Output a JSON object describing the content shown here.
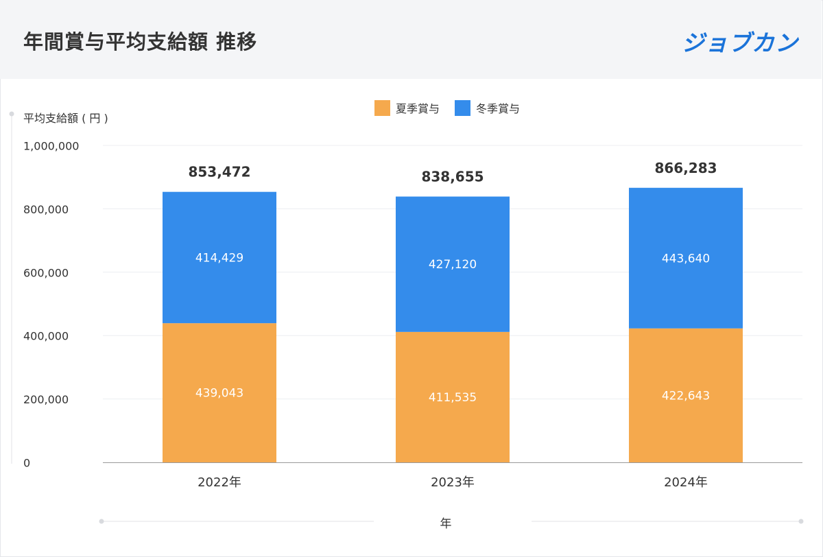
{
  "header": {
    "title": "年間賞与平均支給額 推移",
    "logo": "ジョブカン"
  },
  "colors": {
    "summer": "#f5a94d",
    "winter": "#348ceb",
    "grid": "#eceef1",
    "axis": "#999999"
  },
  "chart_data": {
    "type": "bar",
    "stacked": true,
    "title": "年間賞与平均支給額 推移",
    "xlabel": "年",
    "ylabel": "平均支給額 ( 円 )",
    "categories": [
      "2022年",
      "2023年",
      "2024年"
    ],
    "series": [
      {
        "name": "夏季賞与",
        "values": [
          439043,
          411535,
          422643
        ]
      },
      {
        "name": "冬季賞与",
        "values": [
          414429,
          427120,
          443640
        ]
      }
    ],
    "totals": [
      853472,
      838655,
      866283
    ],
    "total_labels": [
      "853,472",
      "838,655",
      "866,283"
    ],
    "segment_labels": [
      [
        "439,043",
        "411,535",
        "422,643"
      ],
      [
        "414,429",
        "427,120",
        "443,640"
      ]
    ],
    "ylim": [
      0,
      1000000
    ],
    "yticks": [
      0,
      200000,
      400000,
      600000,
      800000,
      1000000
    ],
    "ytick_labels": [
      "0",
      "200,000",
      "400,000",
      "600,000",
      "800,000",
      "1,000,000"
    ],
    "grid": true,
    "legend_position": "top-center"
  }
}
